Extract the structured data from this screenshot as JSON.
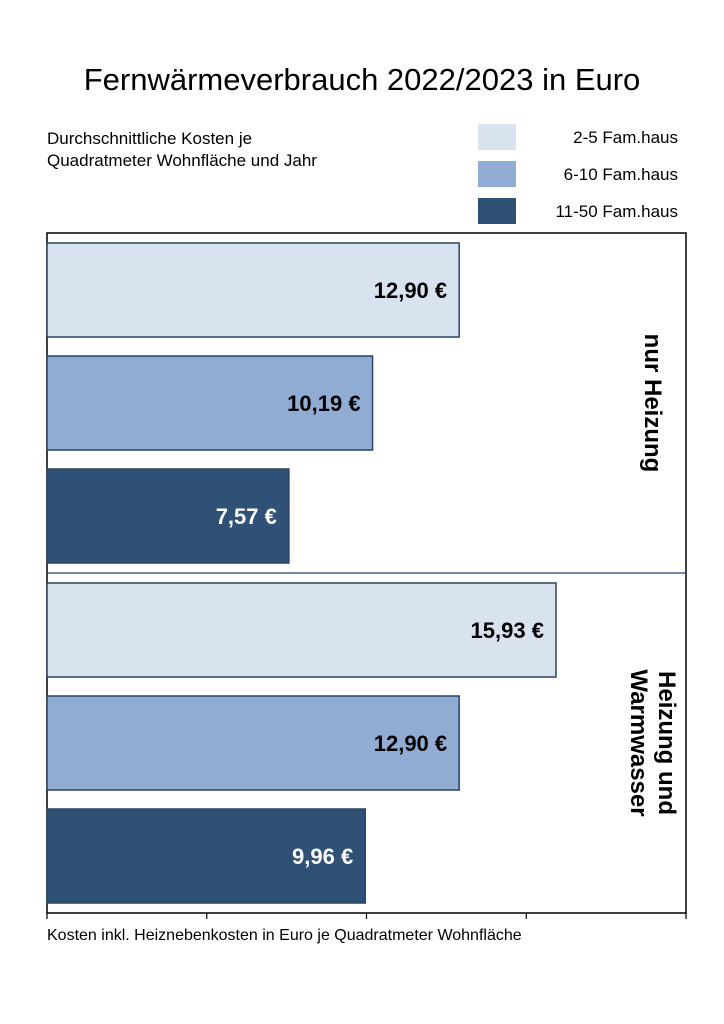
{
  "title": "Fernwärmeverbrauch 2022/2023 in Euro",
  "subtitle_lines": [
    "Durchschnittliche Kosten je",
    "Quadratmeter Wohnfläche und Jahr"
  ],
  "xlabel": "Kosten inkl. Heiznebenkosten in Euro je Quadratmeter Wohnfläche",
  "colors": {
    "light": "#d9e2ef",
    "mid": "#91acd3",
    "dark": "#2f5175",
    "border": "#2a4263"
  },
  "legend": [
    {
      "label": "2-5 Fam.haus",
      "color": "#d9e2ef"
    },
    {
      "label": "6-10 Fam.haus",
      "color": "#91acd3"
    },
    {
      "label": "11-50 Fam.haus",
      "color": "#2f5175"
    }
  ],
  "chart_data": {
    "type": "bar",
    "orientation": "horizontal",
    "title": "Fernwärmeverbrauch 2022/2023 in Euro",
    "xlabel": "Kosten inkl. Heiznebenkosten in Euro je Quadratmeter Wohnfläche",
    "xlim": [
      0,
      20
    ],
    "x_ticks": [
      0,
      5,
      10,
      15,
      20
    ],
    "grid": false,
    "legend_position": "top-right",
    "groups": [
      {
        "label_lines": [
          "nur Heizung"
        ],
        "values": [
          12.9,
          10.19,
          7.57
        ],
        "labels": [
          "12,90 €",
          "10,19 €",
          "7,57 €"
        ]
      },
      {
        "label_lines": [
          "Heizung und",
          "Warmwasser"
        ],
        "values": [
          15.93,
          12.9,
          9.96
        ],
        "labels": [
          "15,93 €",
          "12,90 €",
          "9,96 €"
        ]
      }
    ],
    "series": [
      {
        "name": "2-5 Fam.haus"
      },
      {
        "name": "6-10 Fam.haus"
      },
      {
        "name": "11-50 Fam.haus"
      }
    ]
  }
}
